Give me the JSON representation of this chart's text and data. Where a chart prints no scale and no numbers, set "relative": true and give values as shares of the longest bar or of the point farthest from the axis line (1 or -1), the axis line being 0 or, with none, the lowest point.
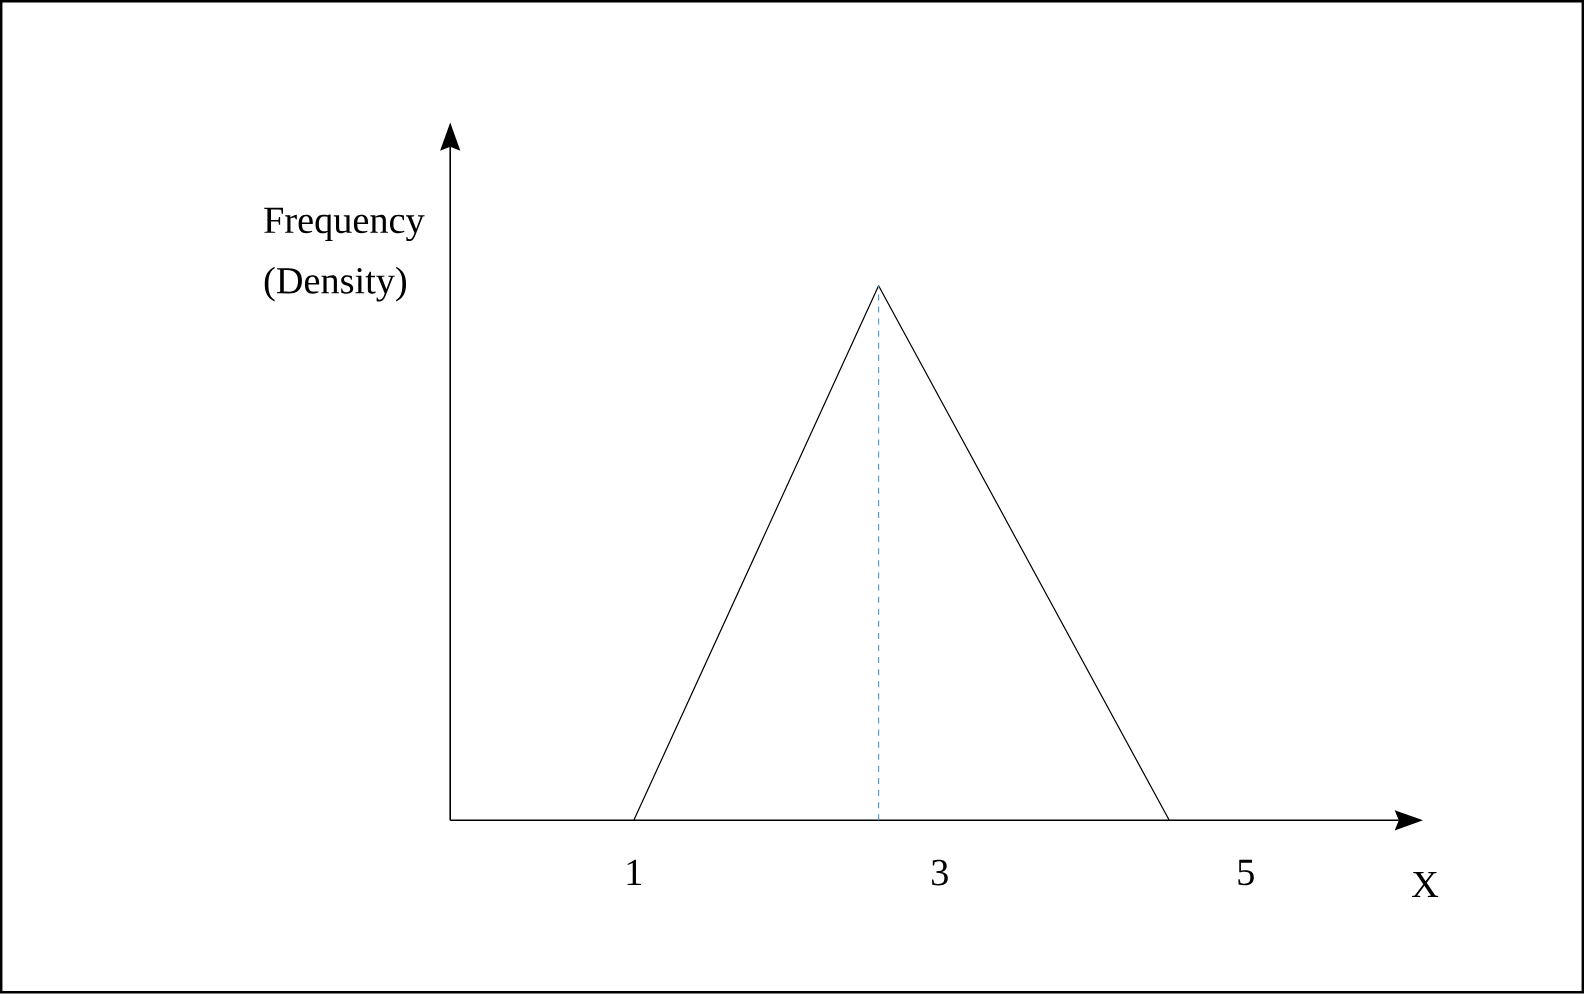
{
  "chart_data": {
    "type": "line",
    "relative": true,
    "xlabel": "X",
    "ylabel": "Frequency (Density)",
    "x": [
      1,
      2.6,
      4.5
    ],
    "series": [
      {
        "color": "#000000",
        "values": [
          0,
          1,
          0
        ]
      }
    ],
    "xlim": [
      -0.2,
      6
    ],
    "xticks": [
      1,
      3,
      5
    ],
    "ref_lines": [
      {
        "axis": "x",
        "value": 2.6,
        "color": "#5b9bd5",
        "line_style": "dashed"
      }
    ]
  }
}
